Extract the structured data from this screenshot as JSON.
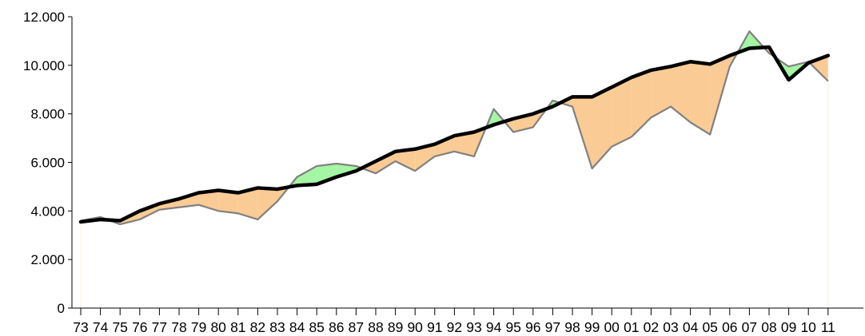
{
  "chart_data": {
    "type": "area",
    "title": "",
    "xlabel": "",
    "ylabel": "",
    "ylim": [
      0,
      12000
    ],
    "yticks": [
      0,
      2000,
      4000,
      6000,
      8000,
      10000,
      12000
    ],
    "ytick_labels": [
      "0",
      "2.000",
      "4.000",
      "6.000",
      "8.000",
      "10.000",
      "12.000"
    ],
    "categories": [
      "73",
      "74",
      "75",
      "76",
      "77",
      "78",
      "79",
      "80",
      "81",
      "82",
      "83",
      "84",
      "85",
      "86",
      "87",
      "88",
      "89",
      "90",
      "91",
      "92",
      "93",
      "94",
      "95",
      "96",
      "97",
      "98",
      "99",
      "00",
      "01",
      "02",
      "03",
      "04",
      "05",
      "06",
      "07",
      "08",
      "09",
      "10",
      "11"
    ],
    "grid": false,
    "legend": "none",
    "series": [
      {
        "role": "trend",
        "color": "#000000",
        "values": [
          3550,
          3650,
          3600,
          4000,
          4300,
          4500,
          4750,
          4850,
          4750,
          4950,
          4900,
          5050,
          5100,
          5400,
          5650,
          6050,
          6450,
          6550,
          6750,
          7100,
          7250,
          7550,
          7800,
          8000,
          8300,
          8700,
          8700,
          9100,
          9500,
          9800,
          9950,
          10150,
          10050,
          10400,
          10700,
          10750,
          9400,
          10100,
          10400
        ]
      },
      {
        "role": "actual",
        "color": "#808080",
        "values": [
          3600,
          3750,
          3450,
          3650,
          4050,
          4150,
          4250,
          4000,
          3900,
          3650,
          4400,
          5400,
          5850,
          5950,
          5850,
          5550,
          6050,
          5650,
          6250,
          6450,
          6250,
          8200,
          7250,
          7450,
          8550,
          8300,
          5750,
          6650,
          7050,
          7850,
          8300,
          7650,
          7150,
          9950,
          11400,
          10500,
          9950,
          10150,
          9350
        ]
      }
    ],
    "fill_colors": {
      "above": "#a4f5a4",
      "below": "#facb94"
    }
  }
}
